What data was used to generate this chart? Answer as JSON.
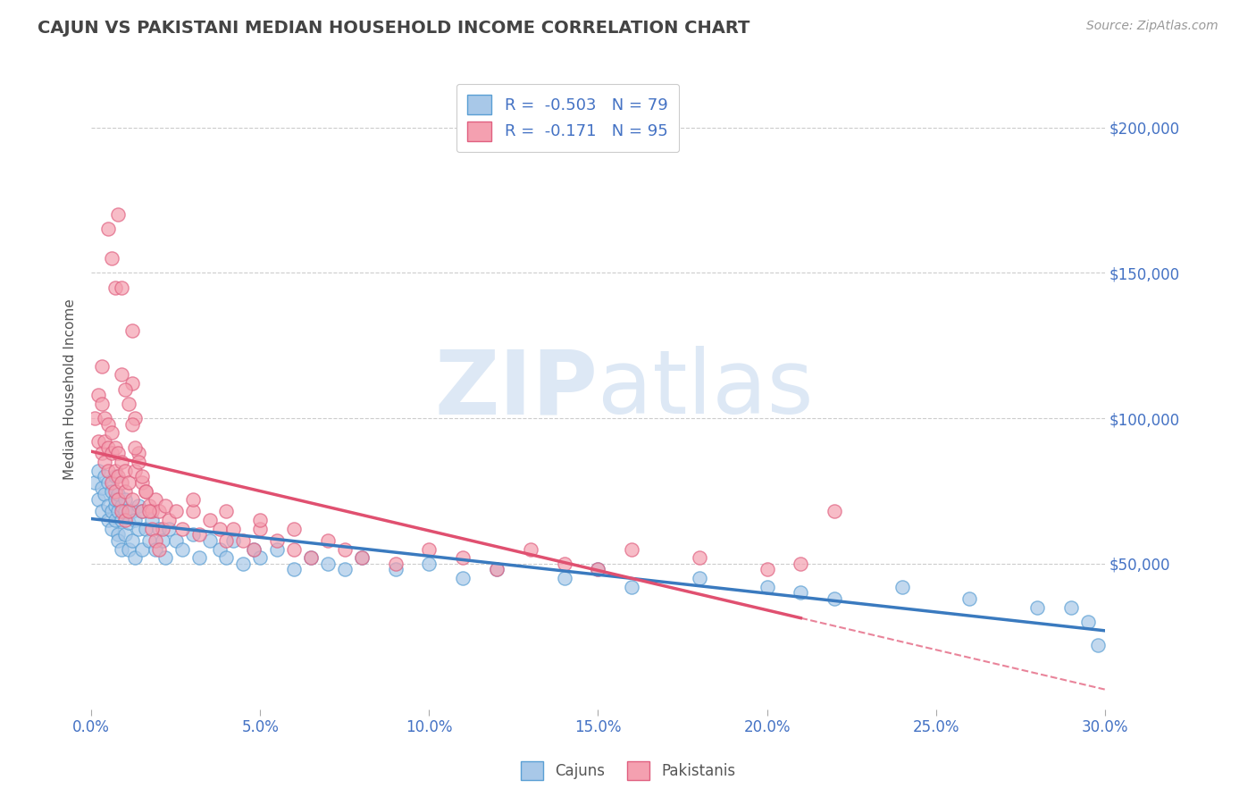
{
  "title": "CAJUN VS PAKISTANI MEDIAN HOUSEHOLD INCOME CORRELATION CHART",
  "source_text": "Source: ZipAtlas.com",
  "ylabel": "Median Household Income",
  "xlim": [
    0.0,
    0.3
  ],
  "ylim": [
    0,
    220000
  ],
  "xticks": [
    0.0,
    0.05,
    0.1,
    0.15,
    0.2,
    0.25,
    0.3
  ],
  "xtick_labels": [
    "0.0%",
    "5.0%",
    "10.0%",
    "15.0%",
    "20.0%",
    "25.0%",
    "30.0%"
  ],
  "yticks": [
    50000,
    100000,
    150000,
    200000
  ],
  "ytick_labels": [
    "$50,000",
    "$100,000",
    "$150,000",
    "$200,000"
  ],
  "cajun_R": -0.503,
  "cajun_N": 79,
  "pakistani_R": -0.171,
  "pakistani_N": 95,
  "cajun_color": "#a8c8e8",
  "pakistani_color": "#f4a0b0",
  "cajun_edge_color": "#5a9fd4",
  "pakistani_edge_color": "#e06080",
  "cajun_line_color": "#3a7abf",
  "pakistani_line_color": "#e05070",
  "grid_color": "#cccccc",
  "title_color": "#444444",
  "axis_label_color": "#555555",
  "tick_color": "#4472C4",
  "watermark_color": "#dde8f5",
  "legend_R_color": "#4472C4",
  "background_color": "#ffffff",
  "cajun_x": [
    0.001,
    0.002,
    0.002,
    0.003,
    0.003,
    0.004,
    0.004,
    0.005,
    0.005,
    0.005,
    0.006,
    0.006,
    0.006,
    0.007,
    0.007,
    0.007,
    0.007,
    0.008,
    0.008,
    0.008,
    0.008,
    0.009,
    0.009,
    0.009,
    0.01,
    0.01,
    0.01,
    0.011,
    0.011,
    0.012,
    0.012,
    0.013,
    0.013,
    0.014,
    0.014,
    0.015,
    0.015,
    0.016,
    0.017,
    0.018,
    0.019,
    0.02,
    0.021,
    0.022,
    0.023,
    0.025,
    0.027,
    0.03,
    0.032,
    0.035,
    0.038,
    0.04,
    0.042,
    0.045,
    0.048,
    0.05,
    0.055,
    0.06,
    0.065,
    0.07,
    0.075,
    0.08,
    0.09,
    0.1,
    0.11,
    0.12,
    0.14,
    0.15,
    0.16,
    0.18,
    0.2,
    0.21,
    0.22,
    0.24,
    0.26,
    0.28,
    0.29,
    0.295,
    0.298
  ],
  "cajun_y": [
    78000,
    72000,
    82000,
    68000,
    76000,
    74000,
    80000,
    70000,
    65000,
    78000,
    68000,
    75000,
    62000,
    80000,
    70000,
    65000,
    72000,
    68000,
    60000,
    74000,
    58000,
    70000,
    65000,
    55000,
    72000,
    60000,
    68000,
    64000,
    55000,
    68000,
    58000,
    65000,
    52000,
    62000,
    70000,
    68000,
    55000,
    62000,
    58000,
    65000,
    55000,
    62000,
    58000,
    52000,
    62000,
    58000,
    55000,
    60000,
    52000,
    58000,
    55000,
    52000,
    58000,
    50000,
    55000,
    52000,
    55000,
    48000,
    52000,
    50000,
    48000,
    52000,
    48000,
    50000,
    45000,
    48000,
    45000,
    48000,
    42000,
    45000,
    42000,
    40000,
    38000,
    42000,
    38000,
    35000,
    35000,
    30000,
    22000
  ],
  "pakistani_x": [
    0.001,
    0.002,
    0.002,
    0.003,
    0.003,
    0.003,
    0.004,
    0.004,
    0.004,
    0.005,
    0.005,
    0.005,
    0.006,
    0.006,
    0.006,
    0.007,
    0.007,
    0.007,
    0.008,
    0.008,
    0.008,
    0.009,
    0.009,
    0.009,
    0.009,
    0.01,
    0.01,
    0.01,
    0.011,
    0.011,
    0.012,
    0.012,
    0.012,
    0.013,
    0.013,
    0.014,
    0.015,
    0.015,
    0.016,
    0.017,
    0.018,
    0.019,
    0.02,
    0.021,
    0.022,
    0.023,
    0.025,
    0.027,
    0.03,
    0.032,
    0.035,
    0.038,
    0.04,
    0.042,
    0.045,
    0.048,
    0.05,
    0.055,
    0.06,
    0.065,
    0.07,
    0.075,
    0.08,
    0.09,
    0.1,
    0.11,
    0.12,
    0.13,
    0.14,
    0.15,
    0.16,
    0.18,
    0.2,
    0.21,
    0.22,
    0.03,
    0.04,
    0.05,
    0.06,
    0.005,
    0.006,
    0.007,
    0.008,
    0.009,
    0.01,
    0.011,
    0.012,
    0.013,
    0.014,
    0.015,
    0.016,
    0.017,
    0.018,
    0.019,
    0.02
  ],
  "pakistani_y": [
    100000,
    108000,
    92000,
    105000,
    118000,
    88000,
    100000,
    92000,
    85000,
    98000,
    90000,
    82000,
    95000,
    88000,
    78000,
    90000,
    82000,
    75000,
    88000,
    80000,
    72000,
    85000,
    78000,
    68000,
    115000,
    82000,
    75000,
    65000,
    78000,
    68000,
    130000,
    112000,
    72000,
    100000,
    82000,
    88000,
    78000,
    68000,
    75000,
    70000,
    68000,
    72000,
    68000,
    62000,
    70000,
    65000,
    68000,
    62000,
    68000,
    60000,
    65000,
    62000,
    58000,
    62000,
    58000,
    55000,
    62000,
    58000,
    55000,
    52000,
    58000,
    55000,
    52000,
    50000,
    55000,
    52000,
    48000,
    55000,
    50000,
    48000,
    55000,
    52000,
    48000,
    50000,
    68000,
    72000,
    68000,
    65000,
    62000,
    165000,
    155000,
    145000,
    170000,
    145000,
    110000,
    105000,
    98000,
    90000,
    85000,
    80000,
    75000,
    68000,
    62000,
    58000,
    55000
  ]
}
